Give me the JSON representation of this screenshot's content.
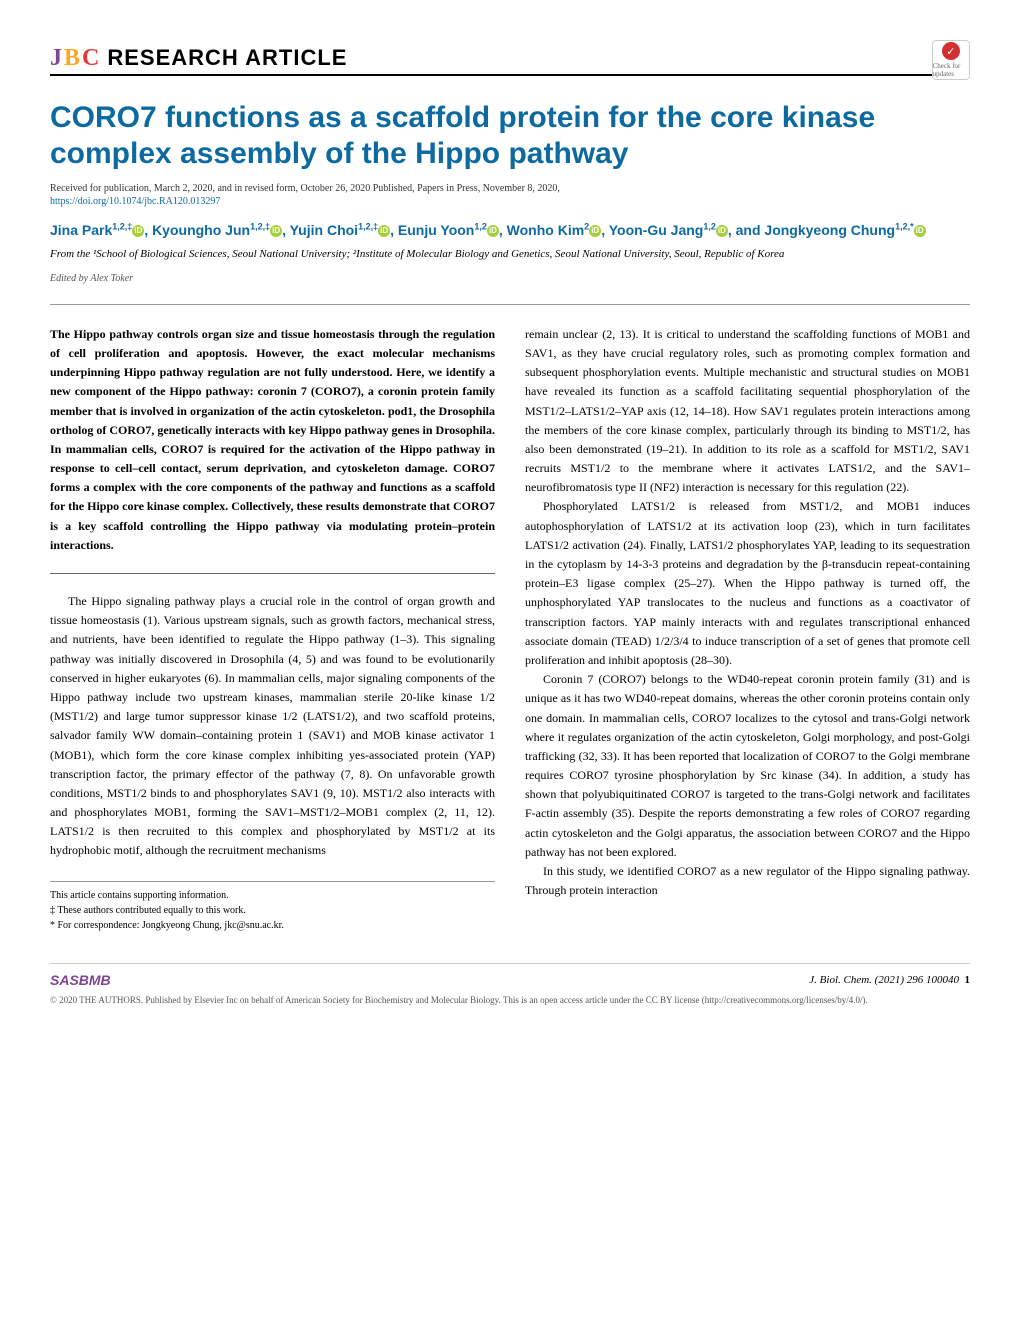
{
  "header": {
    "jbc_j": "J",
    "jbc_b": "B",
    "jbc_c": "C",
    "research_article": "RESEARCH ARTICLE",
    "check_text": "Check for updates"
  },
  "article": {
    "title": "CORO7 functions as a scaffold protein for the core kinase complex assembly of the Hippo pathway",
    "received": "Received for publication, March 2, 2020, and in revised form, October 26, 2020  Published, Papers in Press, November 8, 2020,",
    "doi": "https://doi.org/10.1074/jbc.RA120.013297",
    "authors_html": "Jina Park<sup>1,2,‡</sup> ⓘ, Kyoungho Jun<sup>1,2,‡</sup> ⓘ, Yujin Choi<sup>1,2,‡</sup> ⓘ, Eunju Yoon<sup>1,2</sup> ⓘ, Wonho Kim<sup>2</sup> ⓘ, Yoon-Gu Jang<sup>1,2</sup> ⓘ, and Jongkyeong Chung<sup>1,2,*</sup> ⓘ",
    "affiliation": "From the ¹School of Biological Sciences, Seoul National University; ²Institute of Molecular Biology and Genetics, Seoul National University, Seoul, Republic of Korea",
    "editor": "Edited by Alex Toker"
  },
  "abstract": "The Hippo pathway controls organ size and tissue homeostasis through the regulation of cell proliferation and apoptosis. However, the exact molecular mechanisms underpinning Hippo pathway regulation are not fully understood. Here, we identify a new component of the Hippo pathway: coronin 7 (CORO7), a coronin protein family member that is involved in organization of the actin cytoskeleton. pod1, the Drosophila ortholog of CORO7, genetically interacts with key Hippo pathway genes in Drosophila. In mammalian cells, CORO7 is required for the activation of the Hippo pathway in response to cell–cell contact, serum deprivation, and cytoskeleton damage. CORO7 forms a complex with the core components of the pathway and functions as a scaffold for the Hippo core kinase complex. Collectively, these results demonstrate that CORO7 is a key scaffold controlling the Hippo pathway via modulating protein–protein interactions.",
  "col1_paragraphs": [
    "The Hippo signaling pathway plays a crucial role in the control of organ growth and tissue homeostasis (1). Various upstream signals, such as growth factors, mechanical stress, and nutrients, have been identified to regulate the Hippo pathway (1–3). This signaling pathway was initially discovered in Drosophila (4, 5) and was found to be evolutionarily conserved in higher eukaryotes (6). In mammalian cells, major signaling components of the Hippo pathway include two upstream kinases, mammalian sterile 20-like kinase 1/2 (MST1/2) and large tumor suppressor kinase 1/2 (LATS1/2), and two scaffold proteins, salvador family WW domain–containing protein 1 (SAV1) and MOB kinase activator 1 (MOB1), which form the core kinase complex inhibiting yes-associated protein (YAP) transcription factor, the primary effector of the pathway (7, 8). On unfavorable growth conditions, MST1/2 binds to and phosphorylates SAV1 (9, 10). MST1/2 also interacts with and phosphorylates MOB1, forming the SAV1–MST1/2–MOB1 complex (2, 11, 12). LATS1/2 is then recruited to this complex and phosphorylated by MST1/2 at its hydrophobic motif, although the recruitment mechanisms"
  ],
  "col2_paragraphs": [
    "remain unclear (2, 13). It is critical to understand the scaffolding functions of MOB1 and SAV1, as they have crucial regulatory roles, such as promoting complex formation and subsequent phosphorylation events. Multiple mechanistic and structural studies on MOB1 have revealed its function as a scaffold facilitating sequential phosphorylation of the MST1/2–LATS1/2–YAP axis (12, 14–18). How SAV1 regulates protein interactions among the members of the core kinase complex, particularly through its binding to MST1/2, has also been demonstrated (19–21). In addition to its role as a scaffold for MST1/2, SAV1 recruits MST1/2 to the membrane where it activates LATS1/2, and the SAV1–neurofibromatosis type II (NF2) interaction is necessary for this regulation (22).",
    "Phosphorylated LATS1/2 is released from MST1/2, and MOB1 induces autophosphorylation of LATS1/2 at its activation loop (23), which in turn facilitates LATS1/2 activation (24). Finally, LATS1/2 phosphorylates YAP, leading to its sequestration in the cytoplasm by 14-3-3 proteins and degradation by the β-transducin repeat-containing protein–E3 ligase complex (25–27). When the Hippo pathway is turned off, the unphosphorylated YAP translocates to the nucleus and functions as a coactivator of transcription factors. YAP mainly interacts with and regulates transcriptional enhanced associate domain (TEAD) 1/2/3/4 to induce transcription of a set of genes that promote cell proliferation and inhibit apoptosis (28–30).",
    "Coronin 7 (CORO7) belongs to the WD40-repeat coronin protein family (31) and is unique as it has two WD40-repeat domains, whereas the other coronin proteins contain only one domain. In mammalian cells, CORO7 localizes to the cytosol and trans-Golgi network where it regulates organization of the actin cytoskeleton, Golgi morphology, and post-Golgi trafficking (32, 33). It has been reported that localization of CORO7 to the Golgi membrane requires CORO7 tyrosine phosphorylation by Src kinase (34). In addition, a study has shown that polyubiquitinated CORO7 is targeted to the trans-Golgi network and facilitates F-actin assembly (35). Despite the reports demonstrating a few roles of CORO7 regarding actin cytoskeleton and the Golgi apparatus, the association between CORO7 and the Hippo pathway has not been explored.",
    "In this study, we identified CORO7 as a new regulator of the Hippo signaling pathway. Through protein interaction"
  ],
  "footnotes": {
    "supp": "This article contains supporting information.",
    "equal": "‡ These authors contributed equally to this work.",
    "corresp": "* For correspondence: Jongkyeong Chung, jkc@snu.ac.kr."
  },
  "footer": {
    "asbmb": "SASBMB",
    "citation": "J. Biol. Chem. (2021) 296 100040",
    "pagenum": "1",
    "license": "© 2020 THE AUTHORS. Published by Elsevier Inc on behalf of American Society for Biochemistry and Molecular Biology. This is an open access article under the CC BY license (http://creativecommons.org/licenses/by/4.0/)."
  },
  "colors": {
    "title_blue": "#0d6aa1",
    "link_blue": "#0d6aa1",
    "purple": "#814494",
    "orange": "#f9a825",
    "red": "#e53935",
    "orcid_green": "#a6ce39"
  }
}
